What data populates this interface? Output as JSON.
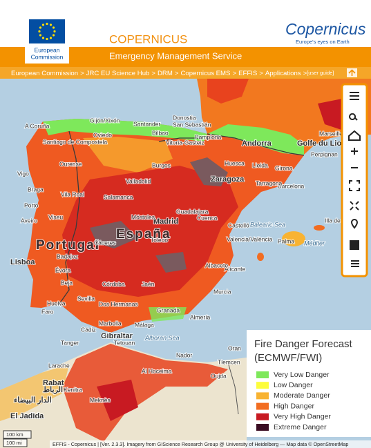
{
  "header": {
    "org": [
      "European",
      "Commission"
    ],
    "title": "COPERNICUS",
    "subtitle": "Emergency Management Service",
    "logo": "Copernicus",
    "logo_tagline": "Europe's eyes on Earth"
  },
  "breadcrumb": {
    "items": [
      "European Commission",
      "JRC EU Science Hub",
      "DRM",
      "Copernicus EMS",
      "EFFIS",
      "Applications"
    ],
    "separator": ">",
    "guide": "[user guide]"
  },
  "map": {
    "labels": [
      "A Coruña",
      "Gijón/Xixón",
      "Santander",
      "Donostia",
      "San Sebastián",
      "Bilbao",
      "Oviedo",
      "Vitoria-Gasteiz",
      "Pamplona",
      "Andorra",
      "Marseille",
      "Golfe du Lion",
      "Perpignan",
      "Girona",
      "Santiago de Compostela",
      "Ourense",
      "Vigo",
      "Braga",
      "Porto",
      "Aveiro",
      "Viseu",
      "Vila Real",
      "Valladolid",
      "Burgos",
      "Zaragoza",
      "Huesca",
      "Lleida",
      "Barcelona",
      "Tarragona",
      "Salamanca",
      "Madrid",
      "Móstoles",
      "Guadalajara",
      "Toledo",
      "Cuenca",
      "Castelló",
      "Valencia/València",
      "Balearic Sea",
      "Palma",
      "Illa de Menorca",
      "Méditer",
      "Portugal",
      "España",
      "Lisboa",
      "Cáceres",
      "Badajoz",
      "Évora",
      "Beja",
      "Faro",
      "Huelva",
      "Sevilla",
      "Córdoba",
      "Dos Hermanas",
      "Jaén",
      "Granada",
      "Málaga",
      "Marbella",
      "Cádiz",
      "Almería",
      "Murcia",
      "Alicante",
      "Albacete",
      "Gibraltar",
      "Tanger",
      "Tetouan",
      "Alboran Sea",
      "Al Hoceima",
      "Nador",
      "Larache",
      "Kenitra",
      "Rabat",
      "الرباط",
      "Meknès",
      "الدار البيضاء",
      "El Jadida",
      "Oujda",
      "Tlemcen",
      "Oran"
    ],
    "scale": [
      "100 km",
      "100 mi"
    ],
    "attribution": "EFFIS - Copernicus | [Ver. 2.3.3]. Imagery from GIScience Research Group @ University of Heidelberg — Map data © OpenStreetMap"
  },
  "legend": {
    "title": [
      "Fire Danger Forecast",
      "(ECMWF/FWI)"
    ],
    "items": [
      {
        "label": "Very Low Danger",
        "color": "#7ee85b"
      },
      {
        "label": "Low Danger",
        "color": "#fdfd3c"
      },
      {
        "label": "Moderate Danger",
        "color": "#f8b332"
      },
      {
        "label": "High Danger",
        "color": "#f26d21"
      },
      {
        "label": "Very High Danger",
        "color": "#c81a22"
      },
      {
        "label": "Extreme Danger",
        "color": "#3b0c22"
      }
    ]
  }
}
